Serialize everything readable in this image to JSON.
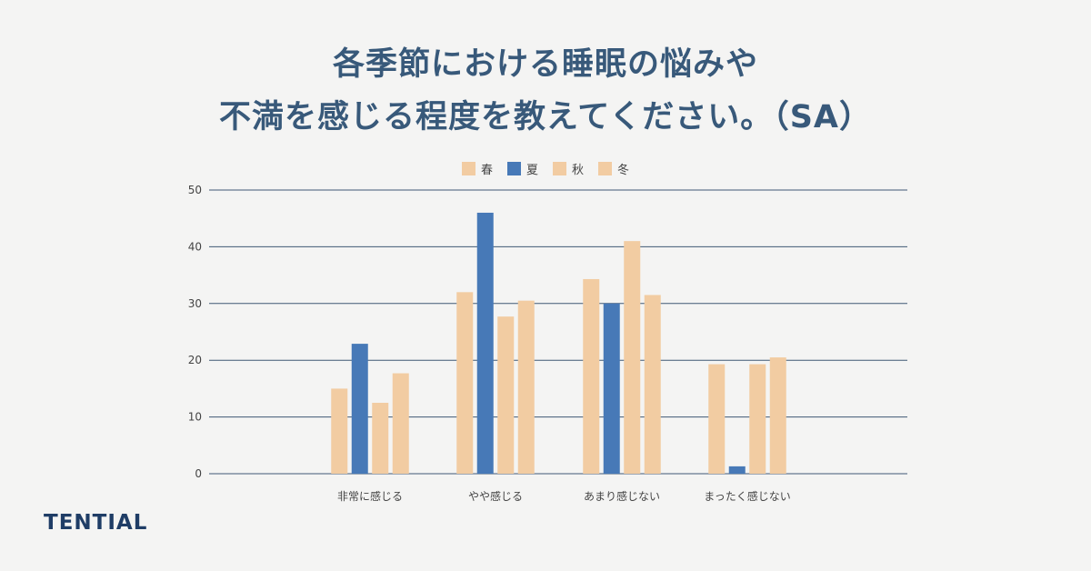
{
  "title_lines": [
    "各季節における睡眠の悩みや",
    "不満を感じる程度を教えてください。（SA）"
  ],
  "brand": "TENTIAL",
  "colors": {
    "light": "#f2cca2",
    "dark": "#4779b7",
    "grid": "#3f5874",
    "axis_text": "#444444"
  },
  "chart_data": {
    "type": "bar",
    "categories": [
      "非常に感じる",
      "やや感じる",
      "あまり感じない",
      "まったく感じない"
    ],
    "series": [
      {
        "name": "春",
        "values": [
          15.0,
          32.0,
          34.3,
          19.3
        ],
        "color": "#f2cca2"
      },
      {
        "name": "夏",
        "values": [
          22.9,
          46.0,
          30.0,
          1.3
        ],
        "color": "#4779b7"
      },
      {
        "name": "秋",
        "values": [
          12.5,
          27.7,
          41.0,
          19.3
        ],
        "color": "#f2cca2"
      },
      {
        "name": "冬",
        "values": [
          17.7,
          30.5,
          31.5,
          20.5
        ],
        "color": "#f2cca2"
      }
    ],
    "ylim": [
      0,
      50
    ],
    "yticks": [
      0,
      10,
      20,
      30,
      40,
      50
    ],
    "grid": true,
    "legend": "top-center",
    "title": "",
    "xlabel": "",
    "ylabel": ""
  }
}
